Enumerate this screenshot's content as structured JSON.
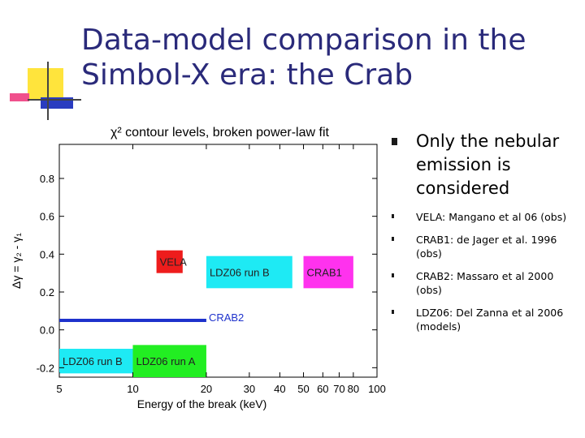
{
  "slide": {
    "title_lines": [
      "Data-model comparison in the",
      "Simbol-X era: the Crab"
    ],
    "main_bullet": "Only the nebular emission is considered",
    "sub_bullets": [
      "VELA: Mangano et al 06 (obs)",
      "CRAB1: de Jager et al. 1996 (obs)",
      "CRAB2: Massaro et al 2000 (obs)",
      "LDZ06: Del Zanna et al 2006 (models)"
    ],
    "colors": {
      "title": "#2a2a7a",
      "deco_yellow": "#ffe43c",
      "deco_blue": "#2a3cc0",
      "deco_pink": "#f0508c"
    }
  },
  "chart_data": {
    "type": "bar",
    "title": "χ² contour levels, broken power-law fit",
    "xlabel": "Energy of the break (keV)",
    "ylabel": "Δγ = γ₂ - γ₁",
    "x_scale": "log",
    "xlim": [
      5,
      100
    ],
    "ylim": [
      -0.25,
      0.98
    ],
    "x_ticks": [
      5,
      10,
      20,
      30,
      40,
      50,
      60,
      70,
      80,
      100
    ],
    "y_ticks": [
      -0.2,
      0.0,
      0.2,
      0.4,
      0.6,
      0.8
    ],
    "regions": [
      {
        "label": "VELA",
        "x": [
          12.5,
          16
        ],
        "y": [
          0.3,
          0.42
        ],
        "color": "#ee1c1c"
      },
      {
        "label": "LDZ06 run B",
        "x": [
          20,
          45
        ],
        "y": [
          0.22,
          0.39
        ],
        "color": "#1eeaf4"
      },
      {
        "label": "CRAB1",
        "x": [
          50,
          80
        ],
        "y": [
          0.22,
          0.39
        ],
        "color": "#ff32ee"
      },
      {
        "label": "LDZ06 run B",
        "x": [
          5,
          10
        ],
        "y": [
          -0.23,
          -0.1
        ],
        "color": "#1eeaf4"
      },
      {
        "label": "LDZ06 run A",
        "x": [
          10,
          20
        ],
        "y": [
          -0.25,
          -0.08
        ],
        "color": "#22ee22"
      }
    ],
    "lines": [
      {
        "label": "CRAB2",
        "x": [
          5,
          20
        ],
        "y": [
          0.05,
          0.05
        ],
        "color": "#1e32cc"
      }
    ]
  }
}
